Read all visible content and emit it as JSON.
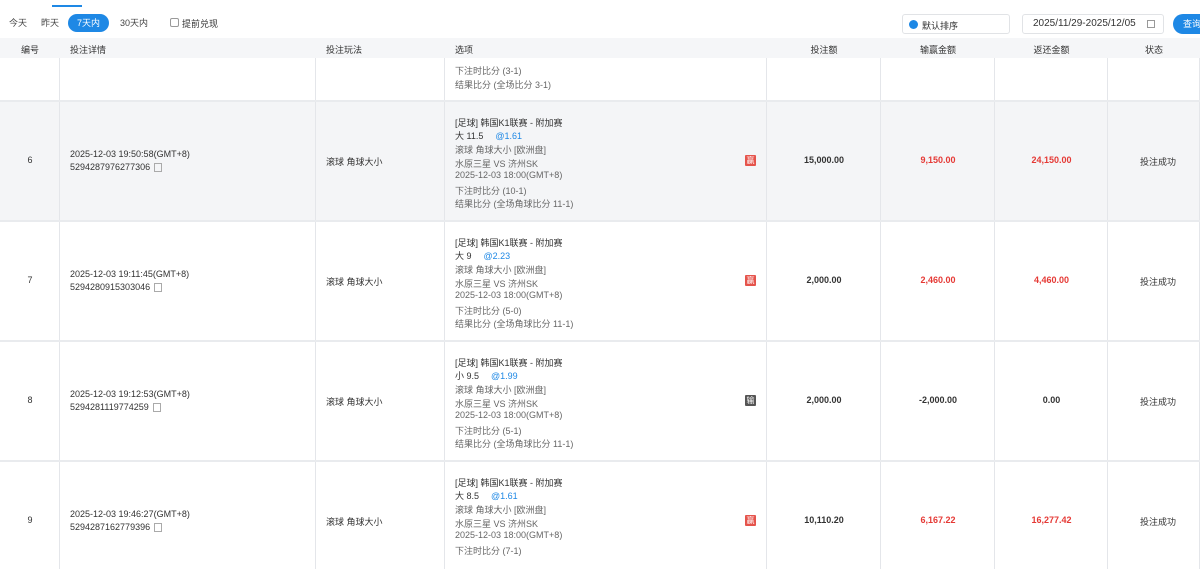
{
  "filters": {
    "ranges": [
      "今天",
      "昨天",
      "7天内",
      "30天内"
    ],
    "active_range": 2,
    "checkbox": "提前兑现",
    "sort": "默认排序",
    "date_range": "2025/11/29-2025/12/05",
    "button": "查询"
  },
  "table": {
    "headers": [
      "编号",
      "投注详情",
      "投注玩法",
      "选项",
      "投注额",
      "输赢金额",
      "返还金额",
      "状态"
    ],
    "partial_row": {
      "lines": [
        "下注时比分 (3-1)",
        "结果比分 (全场比分 3-1)"
      ]
    },
    "rows": [
      {
        "id": "6",
        "time": "2025-12-03 19:50:58(GMT+8)",
        "order": "5294287976277306",
        "play": "滚球   角球大小",
        "league": "[足球] 韩国K1联赛 - 附加赛",
        "pick": "大 11.5",
        "odds": "@1.61",
        "details": [
          "滚球   角球大小 [欧洲盘]",
          "水原三星 VS 济州SK",
          "2025-12-03 18:00(GMT+8)",
          "下注时比分 (10-1)",
          "结果比分 (全场角球比分 11-1)"
        ],
        "badge": "赢",
        "badge_color": "#e5534b",
        "stake": "15,000.00",
        "win_loss": "9,150.00",
        "returned": "24,150.00",
        "amount_color": "#e53935",
        "status": "投注成功",
        "highlighted": true
      },
      {
        "id": "7",
        "time": "2025-12-03 19:11:45(GMT+8)",
        "order": "5294280915303046",
        "play": "滚球   角球大小",
        "league": "[足球] 韩国K1联赛 - 附加赛",
        "pick": "大 9",
        "odds": "@2.23",
        "details": [
          "滚球   角球大小 [欧洲盘]",
          "水原三星 VS 济州SK",
          "2025-12-03 18:00(GMT+8)",
          "下注时比分 (5-0)",
          "结果比分 (全场角球比分 11-1)"
        ],
        "badge": "赢",
        "badge_color": "#e5534b",
        "stake": "2,000.00",
        "win_loss": "2,460.00",
        "returned": "4,460.00",
        "amount_color": "#e53935",
        "status": "投注成功",
        "highlighted": false
      },
      {
        "id": "8",
        "time": "2025-12-03 19:12:53(GMT+8)",
        "order": "5294281119774259",
        "play": "滚球   角球大小",
        "league": "[足球] 韩国K1联赛 - 附加赛",
        "pick": "小 9.5",
        "odds": "@1.99",
        "details": [
          "滚球   角球大小 [欧洲盘]",
          "水原三星 VS 济州SK",
          "2025-12-03 18:00(GMT+8)",
          "下注时比分 (5-1)",
          "结果比分 (全场角球比分 11-1)"
        ],
        "badge": "输",
        "badge_color": "#555555",
        "stake": "2,000.00",
        "win_loss": "-2,000.00",
        "returned": "0.00",
        "amount_color": "#333333",
        "status": "投注成功",
        "highlighted": false
      },
      {
        "id": "9",
        "time": "2025-12-03 19:46:27(GMT+8)",
        "order": "5294287162779396",
        "play": "滚球   角球大小",
        "league": "[足球] 韩国K1联赛 - 附加赛",
        "pick": "大 8.5",
        "odds": "@1.61",
        "details": [
          "滚球   角球大小 [欧洲盘]",
          "水原三星 VS 济州SK",
          "2025-12-03 18:00(GMT+8)",
          "下注时比分 (7-1)"
        ],
        "badge": "赢",
        "badge_color": "#e5534b",
        "stake": "10,110.20",
        "win_loss": "6,167.22",
        "returned": "16,277.42",
        "amount_color": "#e53935",
        "status": "投注成功",
        "highlighted": false
      }
    ]
  }
}
